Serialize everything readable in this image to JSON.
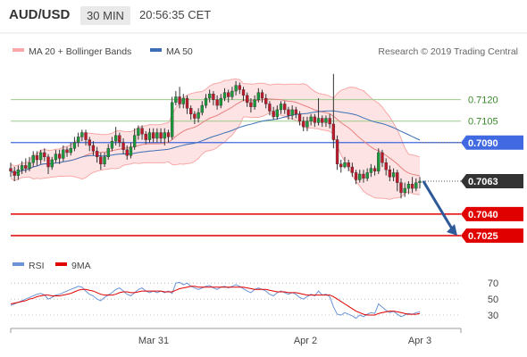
{
  "header": {
    "pair": "AUD/USD",
    "timeframe": "30 MIN",
    "time": "20:56:35 CET"
  },
  "legend": {
    "ma20": "MA 20 + Bollinger Bands",
    "ma50": "MA 50",
    "credit": "Research © 2019 Trading Central"
  },
  "rsi_legend": {
    "rsi": "RSI",
    "ma": "9MA"
  },
  "colors": {
    "bollinger": "#f7a8a8",
    "bollinger_fill": "#fde3e3",
    "ma50": "#3d6fb5",
    "resistance_green": "#9ccc8a",
    "pivot_blue": "#4169e1",
    "support_red": "#e00000",
    "price_tag": "#333333",
    "arrow": "#2f5a9a",
    "rsi": "#6b93d6",
    "rsi_ma": "#e00000",
    "candle_up": "#1a9a3a",
    "candle_down": "#c0182a"
  },
  "chart_data": {
    "type": "candlestick",
    "title": "AUD/USD",
    "timeframe": "30 MIN",
    "x_ticks": [
      "Mar 31",
      "Apr 2",
      "Apr 3"
    ],
    "price_levels": [
      {
        "value": 0.712,
        "label": "0.7120",
        "kind": "resistance"
      },
      {
        "value": 0.7105,
        "label": "0.7105",
        "kind": "resistance"
      },
      {
        "value": 0.709,
        "label": "0.7090",
        "kind": "pivot"
      },
      {
        "value": 0.7063,
        "label": "0.7063",
        "kind": "last"
      },
      {
        "value": 0.704,
        "label": "0.7040",
        "kind": "support"
      },
      {
        "value": 0.7025,
        "label": "0.7025",
        "kind": "support"
      }
    ],
    "y_range": [
      0.7015,
      0.7146
    ],
    "last_price": 0.7063,
    "forecast_arrow": {
      "from": 0.7063,
      "to": 0.7025
    },
    "candles": [
      [
        0.7072,
        0.707,
        0.7076,
        0.7066
      ],
      [
        0.707,
        0.7067,
        0.7073,
        0.7063
      ],
      [
        0.7067,
        0.7071,
        0.7074,
        0.7064
      ],
      [
        0.7071,
        0.7074,
        0.7077,
        0.7068
      ],
      [
        0.7074,
        0.7072,
        0.7079,
        0.7069
      ],
      [
        0.7072,
        0.7076,
        0.708,
        0.707
      ],
      [
        0.7076,
        0.7081,
        0.7084,
        0.7073
      ],
      [
        0.7081,
        0.7078,
        0.7084,
        0.7074
      ],
      [
        0.7078,
        0.7083,
        0.7085,
        0.7075
      ],
      [
        0.7083,
        0.708,
        0.7086,
        0.7077
      ],
      [
        0.708,
        0.7073,
        0.7082,
        0.7068
      ],
      [
        0.7073,
        0.7078,
        0.708,
        0.7071
      ],
      [
        0.7078,
        0.7082,
        0.7085,
        0.7076
      ],
      [
        0.7082,
        0.7079,
        0.7085,
        0.7075
      ],
      [
        0.7079,
        0.7085,
        0.7088,
        0.7077
      ],
      [
        0.7085,
        0.7083,
        0.7087,
        0.708
      ],
      [
        0.7083,
        0.7086,
        0.709,
        0.7081
      ],
      [
        0.7086,
        0.709,
        0.7094,
        0.7084
      ],
      [
        0.709,
        0.7094,
        0.7097,
        0.7087
      ],
      [
        0.7094,
        0.7097,
        0.7099,
        0.7091
      ],
      [
        0.7097,
        0.7092,
        0.7099,
        0.7088
      ],
      [
        0.7092,
        0.7088,
        0.7094,
        0.7084
      ],
      [
        0.7088,
        0.7084,
        0.7091,
        0.7081
      ],
      [
        0.7084,
        0.708,
        0.7087,
        0.7076
      ],
      [
        0.708,
        0.7075,
        0.7083,
        0.7071
      ],
      [
        0.7075,
        0.708,
        0.7083,
        0.7073
      ],
      [
        0.708,
        0.7086,
        0.7089,
        0.7078
      ],
      [
        0.7086,
        0.7091,
        0.7094,
        0.7084
      ],
      [
        0.7091,
        0.7095,
        0.7101,
        0.7088
      ],
      [
        0.7095,
        0.709,
        0.7097,
        0.7087
      ],
      [
        0.709,
        0.7085,
        0.7093,
        0.7082
      ],
      [
        0.7085,
        0.7081,
        0.7088,
        0.7078
      ],
      [
        0.7081,
        0.7087,
        0.709,
        0.7079
      ],
      [
        0.7087,
        0.7095,
        0.71,
        0.7085
      ],
      [
        0.7095,
        0.71,
        0.7102,
        0.7092
      ],
      [
        0.71,
        0.7096,
        0.7102,
        0.7092
      ],
      [
        0.7096,
        0.7092,
        0.7098,
        0.7089
      ],
      [
        0.7092,
        0.7097,
        0.71,
        0.709
      ],
      [
        0.7097,
        0.7093,
        0.71,
        0.709
      ],
      [
        0.7093,
        0.7097,
        0.71,
        0.709
      ],
      [
        0.7097,
        0.7093,
        0.71,
        0.709
      ],
      [
        0.7093,
        0.7097,
        0.71,
        0.7088
      ],
      [
        0.7097,
        0.7094,
        0.7099,
        0.709
      ],
      [
        0.7094,
        0.7118,
        0.7122,
        0.7092
      ],
      [
        0.7118,
        0.7122,
        0.7126,
        0.7116
      ],
      [
        0.7122,
        0.7117,
        0.7129,
        0.7114
      ],
      [
        0.7117,
        0.7121,
        0.7124,
        0.7114
      ],
      [
        0.7121,
        0.7114,
        0.7123,
        0.711
      ],
      [
        0.7114,
        0.711,
        0.7116,
        0.7106
      ],
      [
        0.711,
        0.7107,
        0.7112,
        0.7103
      ],
      [
        0.7107,
        0.7111,
        0.7114,
        0.7104
      ],
      [
        0.7111,
        0.7116,
        0.7119,
        0.7109
      ],
      [
        0.7116,
        0.7121,
        0.7124,
        0.7114
      ],
      [
        0.7121,
        0.7124,
        0.7127,
        0.7118
      ],
      [
        0.7124,
        0.712,
        0.7126,
        0.7116
      ],
      [
        0.712,
        0.7116,
        0.7123,
        0.7113
      ],
      [
        0.7116,
        0.7121,
        0.7124,
        0.7114
      ],
      [
        0.7121,
        0.7125,
        0.7128,
        0.7119
      ],
      [
        0.7125,
        0.7122,
        0.7127,
        0.7118
      ],
      [
        0.7122,
        0.7126,
        0.7129,
        0.712
      ],
      [
        0.7126,
        0.713,
        0.7133,
        0.7123
      ],
      [
        0.713,
        0.7127,
        0.7132,
        0.7124
      ],
      [
        0.7127,
        0.7123,
        0.7129,
        0.7119
      ],
      [
        0.7123,
        0.7118,
        0.7125,
        0.7115
      ],
      [
        0.7118,
        0.7115,
        0.7121,
        0.7111
      ],
      [
        0.7115,
        0.712,
        0.7123,
        0.7113
      ],
      [
        0.712,
        0.7125,
        0.7128,
        0.7118
      ],
      [
        0.7125,
        0.7121,
        0.7127,
        0.7118
      ],
      [
        0.7121,
        0.7117,
        0.7124,
        0.7114
      ],
      [
        0.7117,
        0.7112,
        0.7119,
        0.7109
      ],
      [
        0.7112,
        0.7108,
        0.7115,
        0.7106
      ],
      [
        0.7108,
        0.7113,
        0.7116,
        0.7106
      ],
      [
        0.7113,
        0.7117,
        0.7119,
        0.711
      ],
      [
        0.7117,
        0.7113,
        0.7119,
        0.711
      ],
      [
        0.7113,
        0.7109,
        0.7115,
        0.7106
      ],
      [
        0.7109,
        0.7113,
        0.7116,
        0.7106
      ],
      [
        0.7113,
        0.711,
        0.7115,
        0.7107
      ],
      [
        0.711,
        0.7105,
        0.7112,
        0.7102
      ],
      [
        0.7105,
        0.7101,
        0.7108,
        0.7098
      ],
      [
        0.7101,
        0.7105,
        0.7108,
        0.7098
      ],
      [
        0.7105,
        0.7108,
        0.711,
        0.7102
      ],
      [
        0.7108,
        0.7104,
        0.711,
        0.7101
      ],
      [
        0.7104,
        0.7107,
        0.7121,
        0.7102
      ],
      [
        0.7107,
        0.7104,
        0.7109,
        0.7101
      ],
      [
        0.7104,
        0.7107,
        0.7109,
        0.7101
      ],
      [
        0.7107,
        0.7103,
        0.711,
        0.71
      ],
      [
        0.7103,
        0.7092,
        0.7138,
        0.7086
      ],
      [
        0.7092,
        0.7075,
        0.7095,
        0.7071
      ],
      [
        0.7075,
        0.7073,
        0.7078,
        0.7069
      ],
      [
        0.7073,
        0.7076,
        0.708,
        0.7072
      ],
      [
        0.7076,
        0.7073,
        0.7078,
        0.707
      ],
      [
        0.7073,
        0.7069,
        0.7076,
        0.7066
      ],
      [
        0.7069,
        0.7064,
        0.7071,
        0.7061
      ],
      [
        0.7064,
        0.7068,
        0.7071,
        0.7062
      ],
      [
        0.7068,
        0.7065,
        0.7071,
        0.7062
      ],
      [
        0.7065,
        0.7069,
        0.7072,
        0.7063
      ],
      [
        0.7069,
        0.7072,
        0.7075,
        0.7066
      ],
      [
        0.7072,
        0.707,
        0.7074,
        0.7067
      ],
      [
        0.707,
        0.7083,
        0.7086,
        0.7068
      ],
      [
        0.7083,
        0.7076,
        0.7085,
        0.7073
      ],
      [
        0.7076,
        0.7071,
        0.7079,
        0.7067
      ],
      [
        0.7071,
        0.7066,
        0.7074,
        0.7063
      ],
      [
        0.7066,
        0.7069,
        0.7072,
        0.7063
      ],
      [
        0.7069,
        0.7062,
        0.7071,
        0.7056
      ],
      [
        0.7062,
        0.7055,
        0.7065,
        0.7051
      ],
      [
        0.7055,
        0.7058,
        0.7062,
        0.7052
      ],
      [
        0.7058,
        0.7061,
        0.7063,
        0.7054
      ],
      [
        0.7061,
        0.7058,
        0.7066,
        0.7055
      ],
      [
        0.7058,
        0.7062,
        0.7065,
        0.7056
      ],
      [
        0.7062,
        0.7063,
        0.7066,
        0.7058
      ]
    ],
    "rsi": {
      "levels": [
        70,
        50,
        30
      ],
      "range": [
        20,
        78
      ],
      "series": [
        {
          "name": "RSI",
          "values": [
            42,
            44,
            46,
            48,
            50,
            52,
            54,
            56,
            57,
            55,
            50,
            52,
            55,
            56,
            58,
            60,
            62,
            64,
            66,
            65,
            60,
            56,
            54,
            50,
            48,
            52,
            55,
            58,
            62,
            64,
            60,
            56,
            54,
            58,
            62,
            64,
            60,
            58,
            60,
            58,
            60,
            58,
            60,
            57,
            70,
            71,
            68,
            70,
            66,
            64,
            62,
            64,
            66,
            67,
            64,
            62,
            65,
            66,
            64,
            66,
            68,
            66,
            63,
            60,
            58,
            62,
            64,
            62,
            60,
            56,
            54,
            58,
            60,
            58,
            56,
            58,
            56,
            52,
            50,
            53,
            56,
            54,
            60,
            55,
            56,
            53,
            40,
            31,
            30,
            33,
            31,
            29,
            26,
            30,
            28,
            31,
            33,
            32,
            44,
            40,
            36,
            33,
            35,
            31,
            28,
            30,
            32,
            31,
            33,
            34
          ]
        },
        {
          "name": "9MA",
          "values": [
            44,
            45,
            46,
            47,
            48,
            50,
            51,
            53,
            54,
            55,
            55,
            54,
            54,
            54,
            55,
            56,
            57,
            59,
            61,
            62,
            62,
            61,
            60,
            58,
            56,
            55,
            55,
            55,
            56,
            58,
            59,
            59,
            58,
            58,
            59,
            60,
            60,
            60,
            60,
            60,
            60,
            59,
            59,
            59,
            61,
            63,
            64,
            65,
            66,
            66,
            65,
            65,
            65,
            65,
            65,
            65,
            65,
            65,
            65,
            65,
            65,
            65,
            65,
            64,
            63,
            62,
            62,
            62,
            62,
            61,
            60,
            59,
            59,
            59,
            58,
            58,
            58,
            57,
            56,
            55,
            55,
            55,
            55,
            55,
            55,
            55,
            53,
            50,
            47,
            44,
            41,
            38,
            35,
            33,
            31,
            30,
            30,
            30,
            32,
            33,
            34,
            35,
            35,
            34,
            33,
            32,
            31,
            31,
            31,
            32
          ]
        }
      ]
    }
  }
}
